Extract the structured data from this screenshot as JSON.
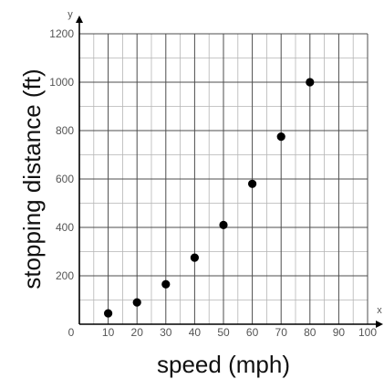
{
  "chart_data": {
    "type": "scatter",
    "xlabel": "speed (mph)",
    "ylabel": "stopping distance (ft)",
    "x_axis_letter": "x",
    "y_axis_letter": "y",
    "xlim": [
      0,
      100
    ],
    "ylim": [
      0,
      1200
    ],
    "x_ticks": [
      0,
      10,
      20,
      30,
      40,
      50,
      60,
      70,
      80,
      90,
      100
    ],
    "y_ticks": [
      200,
      400,
      600,
      800,
      1000,
      1200
    ],
    "x_tick_labels": [
      "0",
      "10",
      "20",
      "30",
      "40",
      "50",
      "60",
      "70",
      "80",
      "90",
      "100"
    ],
    "y_tick_labels": [
      "200",
      "400",
      "600",
      "800",
      "1000",
      "1200"
    ],
    "grid": true,
    "points": [
      {
        "x": 10,
        "y": 45
      },
      {
        "x": 20,
        "y": 90
      },
      {
        "x": 30,
        "y": 165
      },
      {
        "x": 40,
        "y": 275
      },
      {
        "x": 50,
        "y": 410
      },
      {
        "x": 60,
        "y": 580
      },
      {
        "x": 70,
        "y": 775
      },
      {
        "x": 80,
        "y": 1000
      }
    ],
    "colors": {
      "points": "#000000",
      "grid_major": "#4d4d4d",
      "grid_minor": "#b5b5b5",
      "axis": "#000000"
    }
  }
}
